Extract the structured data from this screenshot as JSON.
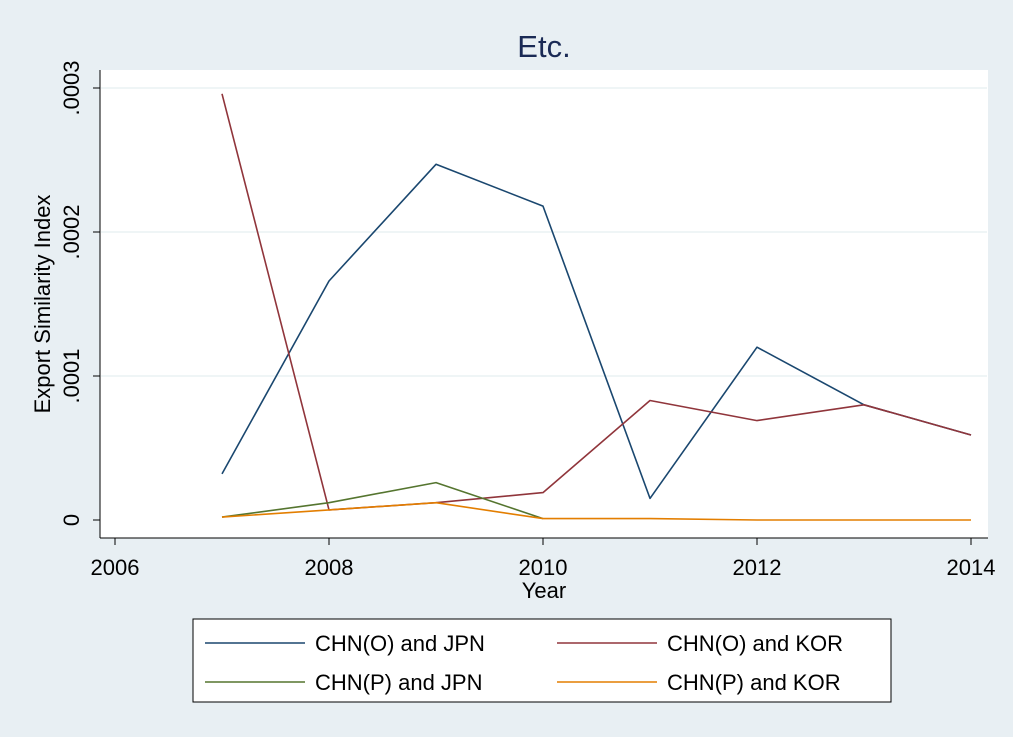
{
  "chart_data": {
    "type": "line",
    "title": "Etc.",
    "xlabel": "Year",
    "ylabel": "Export Similarity Index",
    "xlim": [
      2006,
      2014
    ],
    "ylim": [
      0,
      0.0003
    ],
    "x_ticks": [
      {
        "value": 2006,
        "label": "2006"
      },
      {
        "value": 2008,
        "label": "2008"
      },
      {
        "value": 2010,
        "label": "2010"
      },
      {
        "value": 2012,
        "label": "2012"
      },
      {
        "value": 2014,
        "label": "2014"
      }
    ],
    "y_ticks": [
      {
        "value": 0,
        "label": "0"
      },
      {
        "value": 0.0001,
        "label": ".0001"
      },
      {
        "value": 0.0002,
        "label": ".0002"
      },
      {
        "value": 0.0003,
        "label": ".0003"
      }
    ],
    "grid": true,
    "legend_position": "bottom",
    "x": [
      2007,
      2008,
      2009,
      2010,
      2011,
      2012,
      2013,
      2014
    ],
    "series": [
      {
        "name": "CHN(O) and JPN",
        "color": "#1a476f",
        "values": [
          3.2e-05,
          0.000166,
          0.000247,
          0.000218,
          1.5e-05,
          0.00012,
          8e-05,
          5.9e-05
        ]
      },
      {
        "name": "CHN(O) and KOR",
        "color": "#90353b",
        "values": [
          0.000296,
          7e-06,
          1.2e-05,
          1.9e-05,
          8.3e-05,
          6.9e-05,
          8e-05,
          5.9e-05
        ]
      },
      {
        "name": "CHN(P) and JPN",
        "color": "#55752f",
        "values": [
          2e-06,
          1.2e-05,
          2.6e-05,
          1e-06,
          null,
          null,
          null,
          null
        ]
      },
      {
        "name": "CHN(P) and KOR",
        "color": "#e37e00",
        "values": [
          2e-06,
          7e-06,
          1.2e-05,
          1e-06,
          1e-06,
          0,
          0,
          0
        ]
      }
    ]
  }
}
